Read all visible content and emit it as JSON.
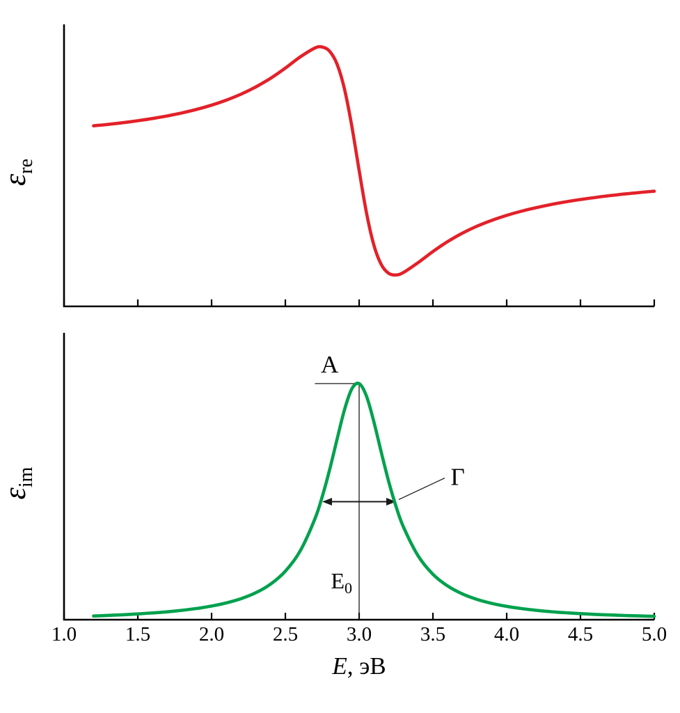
{
  "figure": {
    "description_labels": {
      "amplitude": "A",
      "width": "Γ",
      "center_main": "E",
      "center_sub": "0"
    }
  },
  "colors": {
    "curve_re": "#e32129",
    "curve_im": "#00a14d",
    "axis": "#000000",
    "annotation": "#1a1a1a",
    "background": "#ffffff"
  },
  "chart_data": {
    "type": "line",
    "title": "",
    "xlabel_italic": "E",
    "xlabel_rest": ", эВ",
    "xlim": [
      1.0,
      5.0
    ],
    "x_ticks": [
      1.0,
      1.5,
      2.0,
      2.5,
      3.0,
      3.5,
      4.0,
      4.5,
      5.0
    ],
    "x_tick_labels": [
      "1.0",
      "1.5",
      "2.0",
      "2.5",
      "3.0",
      "3.5",
      "4.0",
      "4.5",
      "5.0"
    ],
    "grid": false,
    "legend": "none",
    "x": [
      1.2,
      1.3,
      1.4,
      1.5,
      1.6,
      1.7,
      1.8,
      1.9,
      2.0,
      2.1,
      2.2,
      2.3,
      2.4,
      2.5,
      2.6,
      2.7,
      2.75,
      2.8,
      2.85,
      2.9,
      2.95,
      3.0,
      3.05,
      3.1,
      3.15,
      3.2,
      3.25,
      3.3,
      3.4,
      3.5,
      3.6,
      3.7,
      3.8,
      3.9,
      4.0,
      4.1,
      4.2,
      4.3,
      4.4,
      4.5,
      4.6,
      4.7,
      4.8,
      4.9,
      5.0
    ],
    "series": [
      {
        "name": "epsilon_re",
        "subplot": "top",
        "values": [
          0.1315,
          0.1357,
          0.1407,
          0.1463,
          0.1529,
          0.1606,
          0.1695,
          0.1799,
          0.1923,
          0.207,
          0.2247,
          0.2459,
          0.2714,
          0.3014,
          0.334,
          0.3603,
          0.3633,
          0.3509,
          0.3133,
          0.2408,
          0.1314,
          0.0,
          -0.1251,
          -0.2199,
          -0.2769,
          -0.3026,
          -0.3075,
          -0.3003,
          -0.2711,
          -0.2385,
          -0.2093,
          -0.1845,
          -0.1638,
          -0.1466,
          -0.1321,
          -0.1198,
          -0.1093,
          -0.1002,
          -0.0924,
          -0.0855,
          -0.0794,
          -0.074,
          -0.0692,
          -0.0649,
          -0.061
        ]
      },
      {
        "name": "epsilon_im",
        "subplot": "bottom",
        "values": [
          0.0104,
          0.0121,
          0.014,
          0.0163,
          0.019,
          0.0223,
          0.0265,
          0.0317,
          0.0385,
          0.0474,
          0.0594,
          0.0762,
          0.1005,
          0.137,
          0.1938,
          0.2844,
          0.3475,
          0.4235,
          0.5088,
          0.5917,
          0.6515,
          0.6667,
          0.6309,
          0.5586,
          0.4727,
          0.3905,
          0.3198,
          0.2621,
          0.18,
          0.1284,
          0.0951,
          0.0728,
          0.0572,
          0.046,
          0.0377,
          0.0314,
          0.0266,
          0.0227,
          0.0196,
          0.0171,
          0.015,
          0.0133,
          0.0118,
          0.0106,
          0.0095
        ]
      }
    ],
    "subplots": {
      "top": {
        "ylabel_symbol": "ε",
        "ylabel_sub": "re",
        "ylim": [
          -0.4,
          0.43
        ],
        "y_tick_labels": []
      },
      "bottom": {
        "ylabel_symbol": "ε",
        "ylabel_sub": "im",
        "ylim": [
          0,
          0.81
        ],
        "y_tick_labels": []
      }
    },
    "annotations": {
      "peak": {
        "label": "A",
        "x": 3.0,
        "y": 0.6667,
        "tie_line_from_x": 2.7
      },
      "half_width": {
        "label": "Γ",
        "x_left": 2.75,
        "x_right": 3.25,
        "y": 0.3333
      },
      "center": {
        "label_main": "E",
        "label_sub": "0",
        "x": 3.0
      }
    }
  }
}
